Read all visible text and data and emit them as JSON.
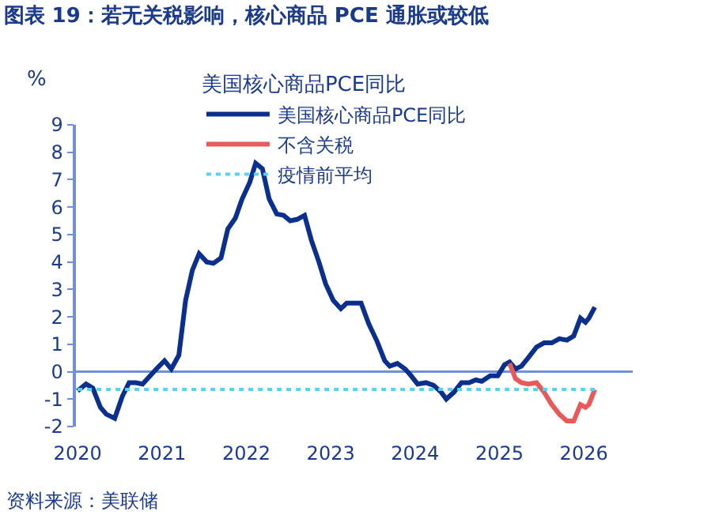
{
  "chart_data": {
    "type": "line",
    "title": "图表 19：若无关税影响，核心商品 PCE 通胀或较低",
    "ylabel": "%",
    "legend_title": "美国核心商品PCE同比",
    "annotations": [
      "资料来源：美联储"
    ],
    "xlim": [
      2019.98,
      2026.58
    ],
    "xticks": [
      2020,
      2021,
      2022,
      2023,
      2024,
      2025,
      2026
    ],
    "ylim": [
      -2,
      9
    ],
    "yticks": [
      -2,
      -1,
      0,
      1,
      2,
      3,
      4,
      5,
      6,
      7,
      8,
      9
    ],
    "grid": false,
    "legend": "top",
    "ref_lines": [
      {
        "axis": "y",
        "value": 0,
        "color": "#6f8fd8",
        "line_style": "solid"
      }
    ],
    "series": [
      {
        "name": "美国核心商品PCE同比",
        "color": "#0a2f8c",
        "line_style": "solid",
        "x": [
          2020.0,
          2020.1,
          2020.18,
          2020.27,
          2020.34,
          2020.44,
          2020.53,
          2020.61,
          2020.69,
          2020.77,
          2020.86,
          2020.95,
          2021.03,
          2021.11,
          2021.2,
          2021.28,
          2021.36,
          2021.44,
          2021.53,
          2021.61,
          2021.7,
          2021.78,
          2021.87,
          2021.95,
          2022.04,
          2022.11,
          2022.19,
          2022.27,
          2022.36,
          2022.44,
          2022.52,
          2022.6,
          2022.69,
          2022.77,
          2022.86,
          2022.94,
          2023.03,
          2023.12,
          2023.19,
          2023.27,
          2023.36,
          2023.45,
          2023.55,
          2023.64,
          2023.7,
          2023.79,
          2023.88,
          2023.94,
          2024.03,
          2024.13,
          2024.22,
          2024.31,
          2024.37,
          2024.46,
          2024.55,
          2024.64,
          2024.72,
          2024.79,
          2024.89,
          2024.98,
          2025.06,
          2025.12,
          2025.19,
          2025.26,
          2025.34,
          2025.44,
          2025.53,
          2025.62,
          2025.71,
          2025.8,
          2025.88,
          2025.96,
          2026.02,
          2026.06,
          2026.13
        ],
        "values": [
          -0.7,
          -0.45,
          -0.6,
          -1.3,
          -1.55,
          -1.7,
          -0.9,
          -0.4,
          -0.4,
          -0.45,
          -0.15,
          0.15,
          0.4,
          0.1,
          0.6,
          2.6,
          3.7,
          4.3,
          4.0,
          3.95,
          4.15,
          5.2,
          5.6,
          6.3,
          6.9,
          7.6,
          7.4,
          6.3,
          5.75,
          5.7,
          5.5,
          5.55,
          5.7,
          4.8,
          4.0,
          3.2,
          2.6,
          2.3,
          2.5,
          2.5,
          2.5,
          1.75,
          1.1,
          0.4,
          0.2,
          0.3,
          0.1,
          -0.1,
          -0.45,
          -0.4,
          -0.5,
          -0.75,
          -1.0,
          -0.75,
          -0.4,
          -0.4,
          -0.3,
          -0.35,
          -0.15,
          -0.15,
          0.25,
          0.35,
          0.1,
          0.2,
          0.5,
          0.9,
          1.05,
          1.05,
          1.2,
          1.15,
          1.3,
          1.95,
          1.8,
          1.95,
          2.35
        ]
      },
      {
        "name": "不含关税",
        "color": "#e85a5a",
        "line_style": "solid",
        "x": [
          2025.12,
          2025.19,
          2025.26,
          2025.34,
          2025.44,
          2025.53,
          2025.62,
          2025.71,
          2025.8,
          2025.88,
          2025.96,
          2026.02,
          2026.06,
          2026.13
        ],
        "values": [
          0.3,
          -0.25,
          -0.4,
          -0.45,
          -0.4,
          -0.75,
          -1.2,
          -1.55,
          -1.8,
          -1.8,
          -1.2,
          -1.3,
          -1.2,
          -0.65
        ]
      },
      {
        "name": "疫情前平均",
        "color": "#5bd0f5",
        "line_style": "dotted",
        "x": [
          2020.0,
          2026.13
        ],
        "values": [
          -0.65,
          -0.65
        ]
      }
    ]
  }
}
